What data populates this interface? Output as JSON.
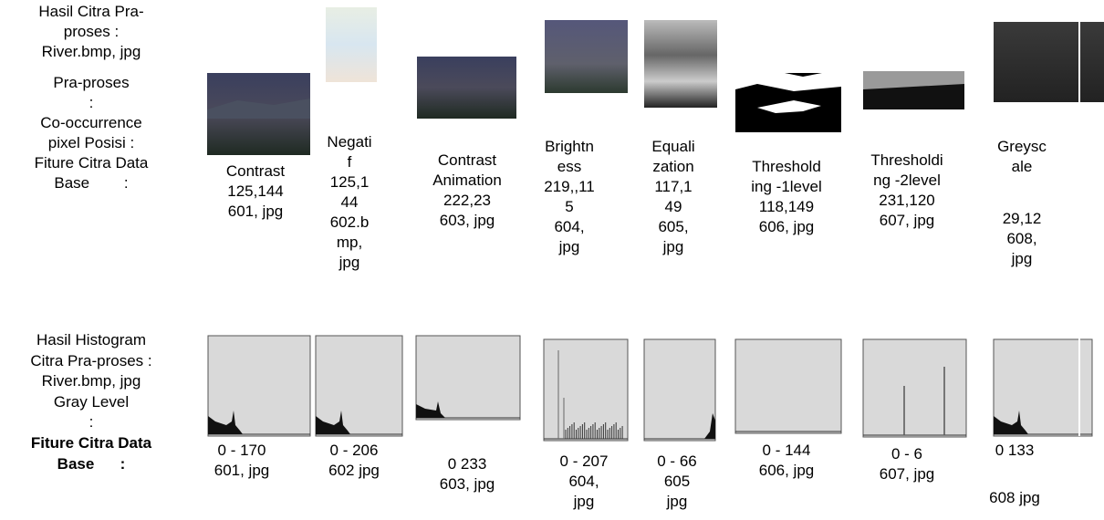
{
  "left_top": {
    "title_lines": [
      "Hasil Citra Pra-",
      "proses :",
      "River.bmp, jpg"
    ],
    "info_lines": [
      "Pra-proses",
      ":",
      "Co-occurrence",
      "pixel Posisi :",
      "Fiture Citra Data",
      "Base        :"
    ]
  },
  "left_bottom": {
    "title_lines": [
      "Hasil Histogram",
      "Citra Pra-proses :",
      "River.bmp, jpg",
      "Gray Level",
      ":"
    ],
    "bold_lines": [
      "Fiture Citra Data",
      "Base      :"
    ]
  },
  "columns": [
    {
      "top_label": [
        "Contrast",
        "125,144",
        "601, jpg"
      ],
      "bottom_label": [
        "0 - 170",
        "601, jpg"
      ]
    },
    {
      "top_label": [
        "Negati",
        "f",
        "125,1",
        "44",
        "602.b",
        "mp,",
        "jpg"
      ],
      "bottom_label": [
        "0 - 206",
        "602 jpg"
      ]
    },
    {
      "top_label": [
        "Contrast",
        "Animation",
        "222,23",
        "603, jpg"
      ],
      "bottom_label": [
        "0 233",
        "603, jpg"
      ]
    },
    {
      "top_label": [
        "Brightn",
        "ess",
        "219,,11",
        "5",
        "604,",
        "jpg"
      ],
      "bottom_label": [
        "0 - 207",
        "604,",
        "jpg"
      ]
    },
    {
      "top_label": [
        "Equali",
        "zation",
        "117,1",
        "49",
        "605,",
        "jpg"
      ],
      "bottom_label": [
        "0 - 66",
        "605",
        "jpg"
      ]
    },
    {
      "top_label": [
        "Threshold",
        "ing -1level",
        "118,149",
        "606, jpg"
      ],
      "bottom_label": [
        "0 - 144",
        "606, jpg"
      ]
    },
    {
      "top_label": [
        "Thresholdi",
        "ng -2level",
        "231,120",
        "607, jpg"
      ],
      "bottom_label": [
        "0 - 6",
        "607, jpg"
      ]
    },
    {
      "top_label": [
        "Greysc",
        "ale",
        "29,12",
        "608,",
        "jpg"
      ],
      "bottom_label": [
        "0 133",
        "608 jpg"
      ]
    }
  ]
}
